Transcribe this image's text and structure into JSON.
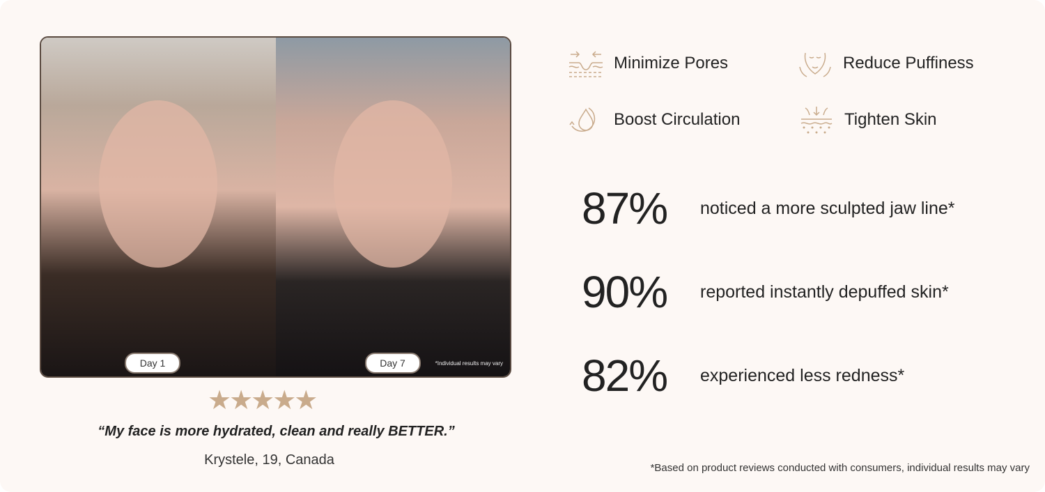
{
  "photo": {
    "before_label": "Day 1",
    "after_label": "Day 7",
    "disclaimer": "*Individual results may vary"
  },
  "rating": {
    "stars": 5,
    "max": 5,
    "glyph": "★★★★★"
  },
  "testimonial": {
    "quote": "“My face is more hydrated, clean and really BETTER.”",
    "author": "Krystele, 19, Canada"
  },
  "features": [
    {
      "label": "Minimize Pores",
      "icon": "pores-icon"
    },
    {
      "label": "Reduce Puffiness",
      "icon": "face-icon"
    },
    {
      "label": "Boost Circulation",
      "icon": "droplet-cycle-icon"
    },
    {
      "label": "Tighten Skin",
      "icon": "tighten-skin-icon"
    }
  ],
  "stats": [
    {
      "value": "87%",
      "text": "noticed a more sculpted jaw line*"
    },
    {
      "value": "90%",
      "text": "reported instantly depuffed skin*"
    },
    {
      "value": "82%",
      "text": "experienced less redness*"
    }
  ],
  "footnote": "*Based on product reviews conducted with consumers, individual results may vary",
  "colors": {
    "accent": "#c9ab8c",
    "background": "#fdf8f5"
  }
}
